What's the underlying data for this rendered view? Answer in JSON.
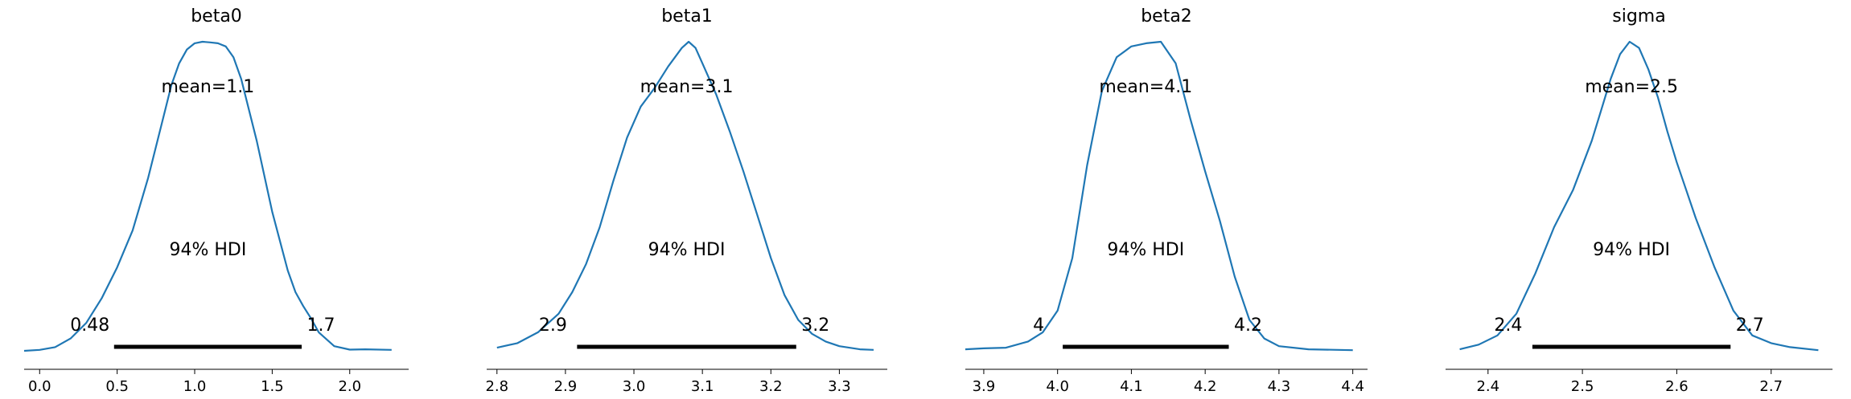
{
  "colors": {
    "curve": "#1f77b4",
    "hdi": "#000000"
  },
  "chart_data": [
    {
      "type": "area",
      "title": "beta0",
      "mean_label": "mean=1.1",
      "hdi_label": "94% HDI",
      "hdi": [
        0.48,
        1.69
      ],
      "hdi_labels": [
        "0.48",
        "1.7"
      ],
      "xlim": [
        -0.1,
        2.38
      ],
      "xticks": [
        0.0,
        0.5,
        1.0,
        1.5,
        2.0
      ],
      "xtick_labels": [
        "0.0",
        "0.5",
        "1.0",
        "1.5",
        "2.0"
      ],
      "density_x": [
        -0.1,
        0.0,
        0.1,
        0.2,
        0.3,
        0.4,
        0.5,
        0.6,
        0.7,
        0.8,
        0.85,
        0.9,
        0.95,
        1.0,
        1.05,
        1.1,
        1.15,
        1.2,
        1.25,
        1.3,
        1.4,
        1.5,
        1.6,
        1.65,
        1.7,
        1.75,
        1.8,
        1.9,
        2.0,
        2.1,
        2.27
      ],
      "density_y": [
        0.0,
        0.003,
        0.012,
        0.04,
        0.09,
        0.17,
        0.27,
        0.39,
        0.56,
        0.76,
        0.86,
        0.93,
        0.975,
        0.995,
        1.0,
        0.998,
        0.995,
        0.985,
        0.95,
        0.88,
        0.68,
        0.45,
        0.26,
        0.19,
        0.145,
        0.105,
        0.06,
        0.015,
        0.004,
        0.005,
        0.003
      ]
    },
    {
      "type": "area",
      "title": "beta1",
      "mean_label": "mean=3.1",
      "hdi_label": "94% HDI",
      "hdi": [
        2.917,
        3.237
      ],
      "hdi_labels": [
        "2.9",
        "3.2"
      ],
      "xlim": [
        2.785,
        3.37
      ],
      "xticks": [
        2.8,
        2.9,
        3.0,
        3.1,
        3.2,
        3.3
      ],
      "xtick_labels": [
        "2.8",
        "2.9",
        "3.0",
        "3.1",
        "3.2",
        "3.3"
      ],
      "density_x": [
        2.8,
        2.83,
        2.86,
        2.89,
        2.91,
        2.93,
        2.95,
        2.97,
        2.99,
        3.01,
        3.03,
        3.05,
        3.07,
        3.08,
        3.09,
        3.1,
        3.12,
        3.14,
        3.16,
        3.18,
        3.2,
        3.22,
        3.24,
        3.26,
        3.28,
        3.3,
        3.33,
        3.35
      ],
      "density_y": [
        0.01,
        0.025,
        0.06,
        0.12,
        0.19,
        0.28,
        0.4,
        0.55,
        0.69,
        0.79,
        0.85,
        0.92,
        0.98,
        1.0,
        0.98,
        0.93,
        0.83,
        0.71,
        0.58,
        0.44,
        0.3,
        0.18,
        0.1,
        0.055,
        0.03,
        0.015,
        0.005,
        0.003
      ]
    },
    {
      "type": "area",
      "title": "beta2",
      "mean_label": "mean=4.1",
      "hdi_label": "94% HDI",
      "hdi": [
        4.007,
        4.232
      ],
      "hdi_labels": [
        "4",
        "4.2"
      ],
      "xlim": [
        3.875,
        4.42
      ],
      "xticks": [
        3.9,
        4.0,
        4.1,
        4.2,
        4.3,
        4.4
      ],
      "xtick_labels": [
        "3.9",
        "4.0",
        "4.1",
        "4.2",
        "4.3",
        "4.4"
      ],
      "density_x": [
        3.875,
        3.9,
        3.93,
        3.96,
        3.98,
        4.0,
        4.02,
        4.04,
        4.06,
        4.08,
        4.1,
        4.12,
        4.14,
        4.16,
        4.18,
        4.2,
        4.22,
        4.24,
        4.26,
        4.28,
        4.3,
        4.34,
        4.4
      ],
      "density_y": [
        0.005,
        0.008,
        0.01,
        0.03,
        0.06,
        0.13,
        0.3,
        0.6,
        0.84,
        0.95,
        0.985,
        0.995,
        1.0,
        0.93,
        0.75,
        0.58,
        0.42,
        0.24,
        0.1,
        0.04,
        0.015,
        0.005,
        0.002
      ]
    },
    {
      "type": "area",
      "title": "sigma",
      "mean_label": "mean=2.5",
      "hdi_label": "94% HDI",
      "hdi": [
        2.447,
        2.657
      ],
      "hdi_labels": [
        "2.4",
        "2.7"
      ],
      "xlim": [
        2.355,
        2.765
      ],
      "xticks": [
        2.4,
        2.5,
        2.6,
        2.7
      ],
      "xtick_labels": [
        "2.4",
        "2.5",
        "2.6",
        "2.7"
      ],
      "density_x": [
        2.37,
        2.39,
        2.41,
        2.43,
        2.45,
        2.47,
        2.49,
        2.51,
        2.52,
        2.53,
        2.54,
        2.55,
        2.56,
        2.57,
        2.58,
        2.59,
        2.6,
        2.61,
        2.62,
        2.64,
        2.66,
        2.68,
        2.7,
        2.72,
        2.75
      ],
      "density_y": [
        0.005,
        0.02,
        0.05,
        0.12,
        0.25,
        0.4,
        0.52,
        0.68,
        0.78,
        0.88,
        0.96,
        1.0,
        0.98,
        0.91,
        0.82,
        0.71,
        0.61,
        0.52,
        0.43,
        0.27,
        0.13,
        0.05,
        0.025,
        0.012,
        0.002
      ]
    }
  ]
}
